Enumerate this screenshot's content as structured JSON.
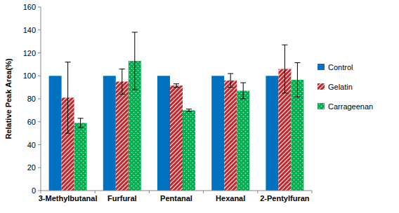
{
  "chart_data": {
    "type": "bar",
    "y_label": "Relative Peak Area(%)",
    "categories": [
      "3-Methylbutanal",
      "Furfural",
      "Pentanal",
      "Hexanal",
      "2-Pentylfuran"
    ],
    "series": [
      {
        "name": "Control",
        "color": "#0070c0",
        "values": [
          100,
          100,
          100,
          100,
          100
        ]
      },
      {
        "name": "Gelatin",
        "color": "#c0282d",
        "values": [
          81,
          95,
          91.5,
          96,
          106
        ],
        "errors": [
          31,
          11,
          1.5,
          6,
          21
        ]
      },
      {
        "name": "Carrageenan",
        "color": "#00b050",
        "values": [
          59,
          113,
          70,
          87,
          96.5
        ],
        "errors": [
          4,
          25,
          1,
          7,
          15
        ]
      }
    ],
    "ylim": [
      0,
      160
    ],
    "yticks": [
      0,
      20,
      40,
      60,
      80,
      100,
      120,
      140,
      160
    ],
    "grid": false,
    "legend": "right"
  }
}
